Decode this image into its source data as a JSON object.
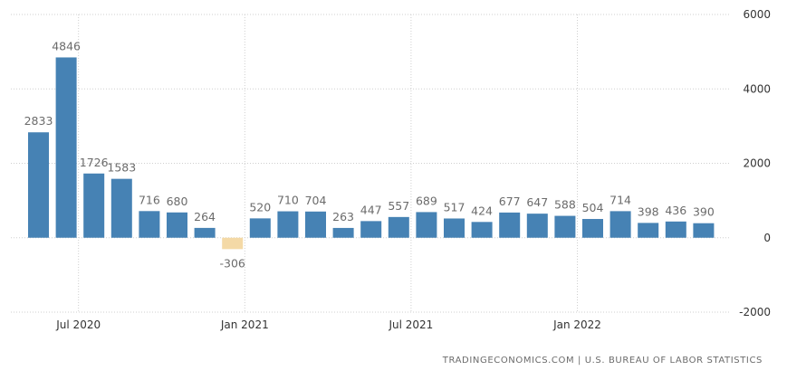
{
  "chart_data": {
    "type": "bar",
    "categories": [
      "May 2020",
      "Jun 2020",
      "Jul 2020",
      "Aug 2020",
      "Sep 2020",
      "Oct 2020",
      "Nov 2020",
      "Dec 2020",
      "Jan 2021",
      "Feb 2021",
      "Mar 2021",
      "Apr 2021",
      "May 2021",
      "Jun 2021",
      "Jul 2021",
      "Aug 2021",
      "Sep 2021",
      "Oct 2021",
      "Nov 2021",
      "Dec 2021",
      "Jan 2022",
      "Feb 2022",
      "Mar 2022",
      "Apr 2022",
      "May 2022"
    ],
    "values": [
      2833,
      4846,
      1726,
      1583,
      716,
      680,
      264,
      -306,
      520,
      710,
      704,
      263,
      447,
      557,
      689,
      517,
      424,
      677,
      647,
      588,
      504,
      714,
      398,
      436,
      390
    ],
    "data_labels": [
      "2833",
      "4846",
      "1726",
      "1583",
      "716",
      "680",
      "264",
      "-306",
      "520",
      "710",
      "704",
      "263",
      "447",
      "557",
      "689",
      "517",
      "424",
      "677",
      "647",
      "588",
      "504",
      "714",
      "398",
      "436",
      "390"
    ],
    "x_ticks": [
      {
        "label": "Jul 2020",
        "index": 2
      },
      {
        "label": "Jan 2021",
        "index": 8
      },
      {
        "label": "Jul 2021",
        "index": 14
      },
      {
        "label": "Jan 2022",
        "index": 20
      }
    ],
    "y_ticks": [
      6000,
      4000,
      2000,
      0,
      -2000
    ],
    "y_tick_labels": [
      "6000",
      "4000",
      "2000",
      "0",
      "-2000"
    ],
    "ylim": [
      -2000,
      6000
    ],
    "grid": true,
    "y_axis_side": "right",
    "colors": {
      "positive": "#4682b4",
      "negative": "#f4d9a6"
    }
  },
  "source": "TRADINGECONOMICS.COM  |  U.S. BUREAU OF LABOR STATISTICS"
}
